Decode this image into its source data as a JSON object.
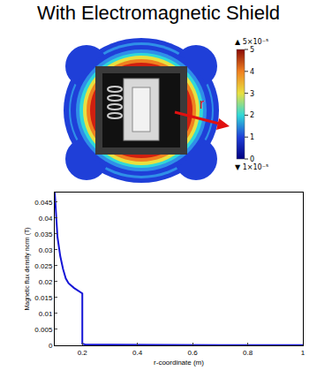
{
  "title": "With Electromagnetic Shield",
  "illustration": {
    "arrow_label": "r",
    "colorbar": {
      "max_label": "▲ 5×10⁻⁵",
      "min_label": "▼ 1×10⁻⁵",
      "range": [
        0,
        5
      ],
      "ticks": [
        0,
        1,
        2,
        3,
        4,
        5
      ]
    }
  },
  "chart_data": {
    "type": "line",
    "x_label": "r-coordinate (m)",
    "y_label": "Magnetic flux density norm (T)",
    "x": [
      0.1,
      0.105,
      0.11,
      0.12,
      0.13,
      0.14,
      0.15,
      0.17,
      0.19,
      0.2,
      0.2,
      0.21,
      0.3,
      0.5,
      0.7,
      1.0
    ],
    "values": [
      0.048,
      0.04,
      0.034,
      0.028,
      0.024,
      0.021,
      0.0195,
      0.018,
      0.017,
      0.0163,
      0.0005,
      0.0003,
      0.0002,
      0.0001,
      0.0001,
      0.0001
    ],
    "color": "#1515d6",
    "xlim": [
      0.1,
      1
    ],
    "ylim": [
      0,
      0.048
    ],
    "xticks": [
      0.2,
      0.4,
      0.6,
      0.8,
      1
    ],
    "yticks": [
      0,
      0.005,
      0.01,
      0.015,
      0.02,
      0.025,
      0.03,
      0.035,
      0.04,
      0.045
    ],
    "grid": false
  }
}
